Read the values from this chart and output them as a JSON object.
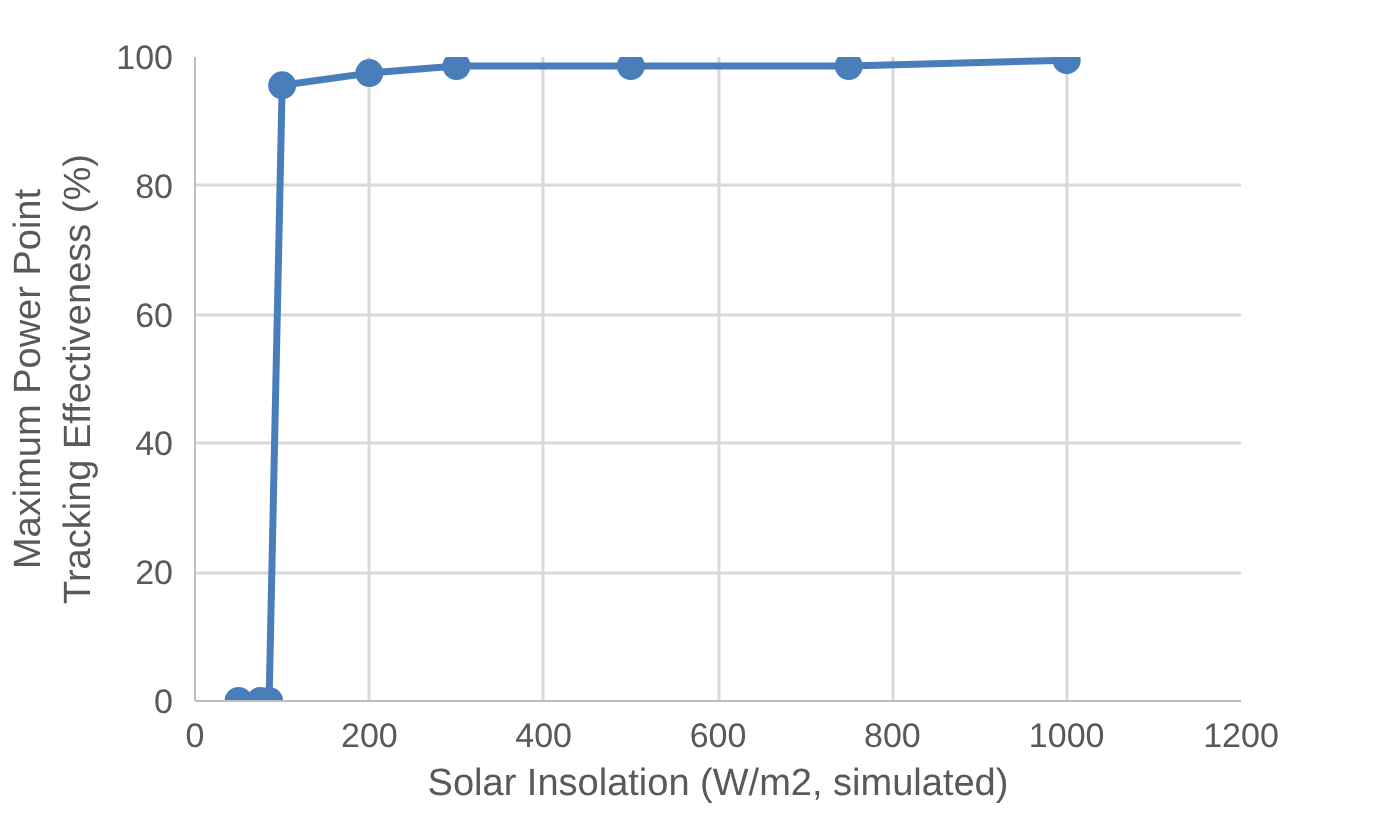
{
  "chart_data": {
    "type": "line",
    "xlabel": "Solar Insolation (W/m2, simulated)",
    "ylabel": "Maximum Power Point\nTracking Effectiveness (%)",
    "x": [
      50,
      75,
      85,
      100,
      200,
      300,
      500,
      750,
      1000
    ],
    "series": [
      {
        "color": "#4a7ebb",
        "values": [
          0,
          0,
          0,
          95.6,
          97.5,
          98.6,
          98.6,
          98.6,
          99.5
        ]
      }
    ],
    "xlim": [
      0,
      1200
    ],
    "xticks": [
      0,
      200,
      400,
      600,
      800,
      1000,
      1200
    ],
    "ylim": [
      0,
      100
    ],
    "yticks": [
      0,
      20,
      40,
      60,
      80,
      100
    ],
    "grid": true,
    "marker": "circle",
    "line_style": "solid"
  }
}
